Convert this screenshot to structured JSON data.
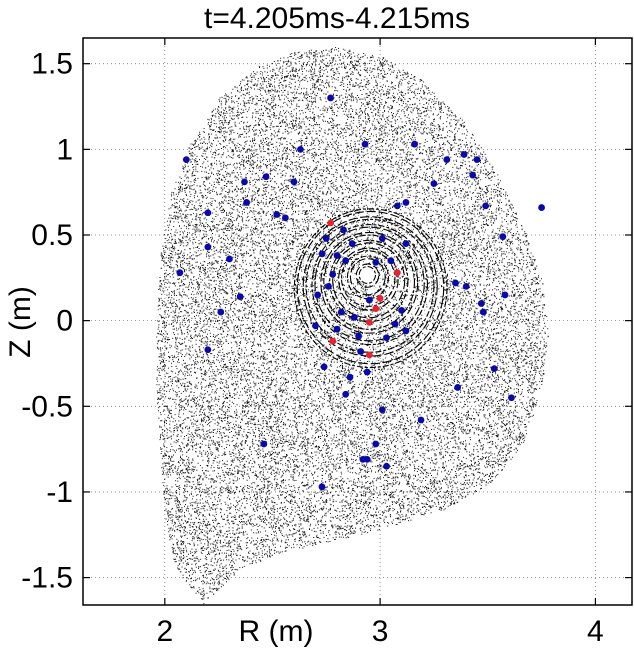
{
  "chart_data": {
    "type": "scatter",
    "title": "t=4.205ms-4.215ms",
    "xlabel": "R (m)",
    "ylabel": "Z (m)",
    "xlim": [
      1.62,
      4.17
    ],
    "ylim": [
      -1.66,
      1.65
    ],
    "xticks": [
      2,
      3,
      4
    ],
    "xtick_labels": [
      "2",
      "3",
      "4"
    ],
    "yticks": [
      1.5,
      1,
      0.5,
      0,
      -0.5,
      -1,
      -1.5
    ],
    "ytick_labels": [
      "1.5",
      "1",
      "0.5",
      "0",
      "-0.5",
      "-1",
      "-1.5"
    ],
    "grid": true,
    "magnetic_axis": {
      "R": 2.94,
      "Z": 0.27
    },
    "boundary": [
      [
        2.18,
        -1.65
      ],
      [
        2.05,
        -1.45
      ],
      [
        2.0,
        -1.15
      ],
      [
        1.98,
        -0.8
      ],
      [
        1.96,
        -0.4
      ],
      [
        1.96,
        0.0
      ],
      [
        1.98,
        0.4
      ],
      [
        2.03,
        0.75
      ],
      [
        2.12,
        1.05
      ],
      [
        2.25,
        1.3
      ],
      [
        2.42,
        1.48
      ],
      [
        2.6,
        1.57
      ],
      [
        2.8,
        1.6
      ],
      [
        3.0,
        1.55
      ],
      [
        3.2,
        1.4
      ],
      [
        3.4,
        1.15
      ],
      [
        3.55,
        0.85
      ],
      [
        3.68,
        0.5
      ],
      [
        3.76,
        0.2
      ],
      [
        3.78,
        -0.1
      ],
      [
        3.75,
        -0.4
      ],
      [
        3.67,
        -0.7
      ],
      [
        3.52,
        -0.95
      ],
      [
        3.3,
        -1.1
      ],
      [
        3.05,
        -1.2
      ],
      [
        2.8,
        -1.28
      ],
      [
        2.55,
        -1.35
      ],
      [
        2.35,
        -1.45
      ],
      [
        2.22,
        -1.6
      ]
    ],
    "series": [
      {
        "name": "blue markers",
        "color": "#0a0aa8",
        "points": [
          [
            2.77,
            1.3
          ],
          [
            2.1,
            0.94
          ],
          [
            2.63,
            1.0
          ],
          [
            2.93,
            1.03
          ],
          [
            3.16,
            1.03
          ],
          [
            3.31,
            0.94
          ],
          [
            3.39,
            0.97
          ],
          [
            3.45,
            0.94
          ],
          [
            3.43,
            0.85
          ],
          [
            3.25,
            0.8
          ],
          [
            2.6,
            0.81
          ],
          [
            2.47,
            0.84
          ],
          [
            2.37,
            0.81
          ],
          [
            2.2,
            0.63
          ],
          [
            2.38,
            0.69
          ],
          [
            2.56,
            0.6
          ],
          [
            2.52,
            0.62
          ],
          [
            2.2,
            0.43
          ],
          [
            2.3,
            0.36
          ],
          [
            2.07,
            0.28
          ],
          [
            2.35,
            0.14
          ],
          [
            2.26,
            0.05
          ],
          [
            2.2,
            -0.17
          ],
          [
            3.08,
            0.67
          ],
          [
            3.12,
            0.69
          ],
          [
            3.49,
            0.67
          ],
          [
            3.57,
            0.49
          ],
          [
            3.75,
            0.66
          ],
          [
            3.35,
            0.22
          ],
          [
            3.4,
            0.2
          ],
          [
            3.47,
            0.1
          ],
          [
            3.48,
            0.05
          ],
          [
            3.58,
            0.15
          ],
          [
            3.53,
            -0.28
          ],
          [
            3.36,
            -0.39
          ],
          [
            3.61,
            -0.45
          ],
          [
            3.19,
            -0.58
          ],
          [
            3.01,
            -0.52
          ],
          [
            2.98,
            -0.72
          ],
          [
            2.92,
            -0.81
          ],
          [
            2.94,
            -0.81
          ],
          [
            3.03,
            -0.85
          ],
          [
            2.73,
            -0.97
          ],
          [
            2.46,
            -0.72
          ],
          [
            2.84,
            -0.43
          ],
          [
            2.86,
            -0.33
          ],
          [
            2.74,
            -0.27
          ],
          [
            2.94,
            -0.3
          ],
          [
            2.88,
            0.02
          ],
          [
            2.82,
            0.05
          ],
          [
            3.03,
            -0.1
          ],
          [
            3.12,
            -0.06
          ],
          [
            3.1,
            0.06
          ],
          [
            2.95,
            0.12
          ],
          [
            2.8,
            0.38
          ],
          [
            2.73,
            0.39
          ],
          [
            2.75,
            0.48
          ],
          [
            2.83,
            0.53
          ],
          [
            3.12,
            0.45
          ],
          [
            2.71,
            0.15
          ],
          [
            2.76,
            0.2
          ],
          [
            2.78,
            0.27
          ],
          [
            2.7,
            -0.03
          ],
          [
            2.91,
            -0.18
          ],
          [
            3.07,
            -0.02
          ],
          [
            2.98,
            0.34
          ],
          [
            3.05,
            0.35
          ],
          [
            2.84,
            0.35
          ],
          [
            2.87,
            0.45
          ],
          [
            3.01,
            0.48
          ],
          [
            2.8,
            -0.05
          ],
          [
            2.9,
            -0.09
          ]
        ]
      },
      {
        "name": "red markers",
        "color": "#e8222e",
        "points": [
          [
            2.77,
            0.57
          ],
          [
            3.08,
            0.28
          ],
          [
            3.0,
            0.13
          ],
          [
            2.98,
            0.07
          ],
          [
            2.95,
            -0.01
          ],
          [
            2.78,
            -0.12
          ],
          [
            2.95,
            -0.2
          ]
        ]
      }
    ]
  }
}
